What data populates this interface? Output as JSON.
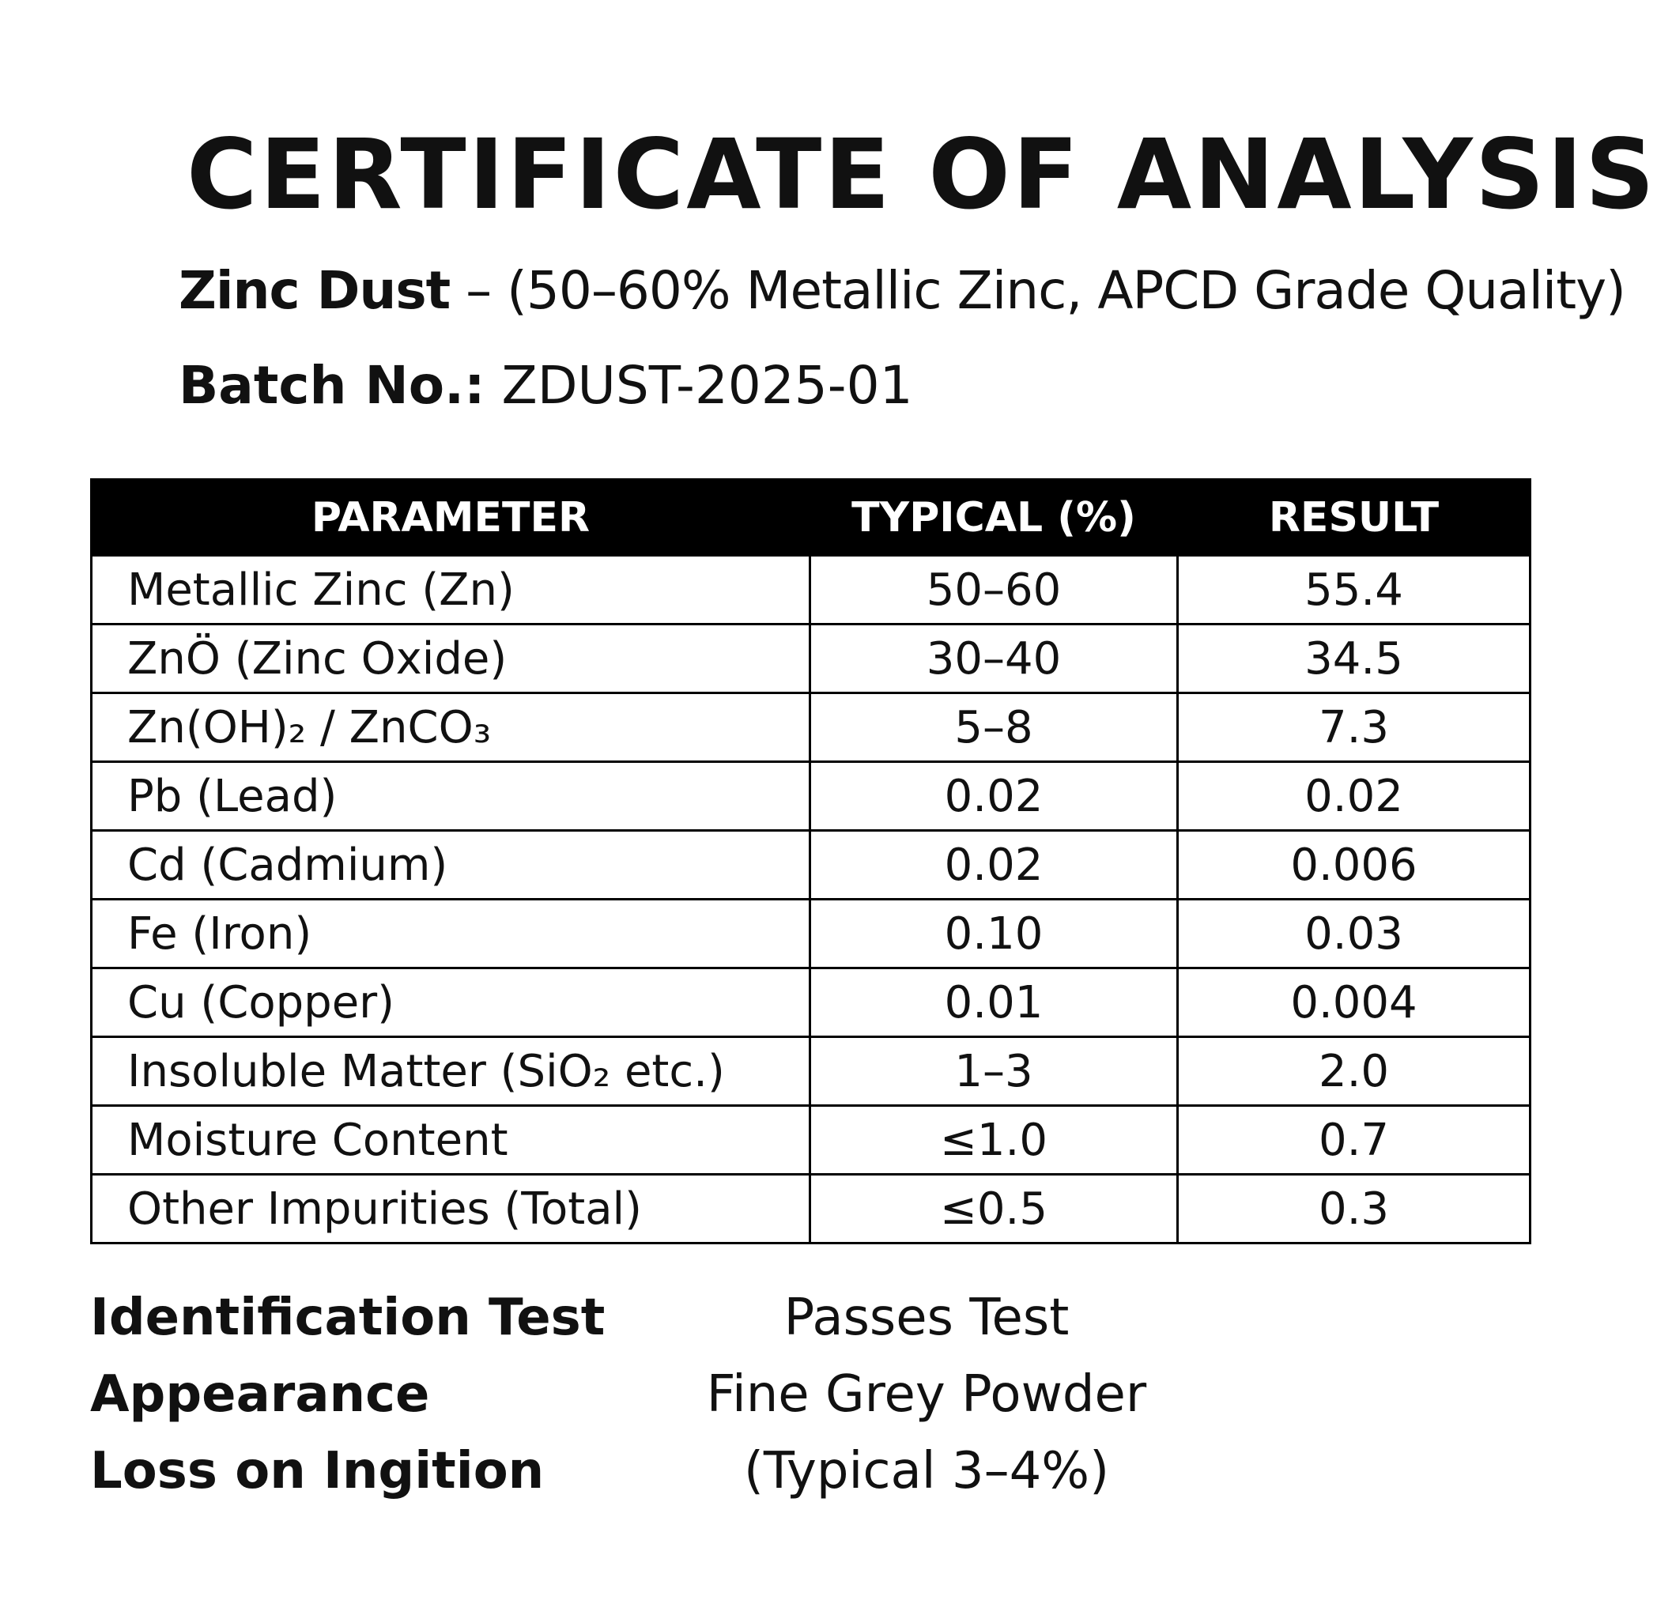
{
  "document": {
    "title": "CERTIFICATE OF ANALYSIS",
    "subtitle_product": "Zinc Dust",
    "subtitle_rest": " – (50–60% Metallic Zinc, APCD Grade Quality)",
    "batch_label": "Batch No.:",
    "batch_value": " ZDUST-2025-01"
  },
  "table": {
    "headers": [
      "PARAMETER",
      "TYPICAL (%)",
      "RESULT"
    ],
    "rows": [
      {
        "parameter": "Metallic Zinc (Zn)",
        "typical": "50–60",
        "result": "55.4"
      },
      {
        "parameter": "ZnÖ (Zinc Oxide)",
        "typical": "30–40",
        "result": "34.5"
      },
      {
        "parameter": "Zn(OH)₂ / ZnCO₃",
        "typical": "5–8",
        "result": "7.3"
      },
      {
        "parameter": "Pb (Lead)",
        "typical": "0.02",
        "result": "0.02"
      },
      {
        "parameter": "Cd (Cadmium)",
        "typical": "0.02",
        "result": "0.006"
      },
      {
        "parameter": "Fe (Iron)",
        "typical": "0.10",
        "result": "0.03"
      },
      {
        "parameter": "Cu (Copper)",
        "typical": "0.01",
        "result": "0.004"
      },
      {
        "parameter": "Insoluble Matter (SiO₂ etc.)",
        "typical": "1–3",
        "result": "2.0"
      },
      {
        "parameter": "Moisture Content",
        "typical": "≤1.0",
        "result": "0.7"
      },
      {
        "parameter": "Other Impurities (Total)",
        "typical": "≤0.5",
        "result": "0.3"
      }
    ]
  },
  "extra_tests": [
    {
      "label": "Identification Test",
      "value": "Passes Test"
    },
    {
      "label": "Appearance",
      "value": "Fine Grey Powder"
    },
    {
      "label": "Loss on Ingition",
      "value": "(Typical 3–4%)"
    }
  ]
}
